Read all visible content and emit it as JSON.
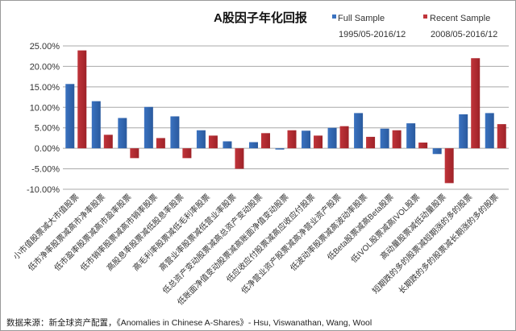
{
  "chart_data": {
    "type": "bar",
    "title": "A股因子年化回报",
    "categories": [
      "小市值股票减大市值股票",
      "低市净率股票减高市净率股票",
      "低市盈率股票减高市盈率股票",
      "低市销率股票减高市销率股票",
      "高股息率股票减低股息率股票",
      "高毛利率股票减低毛利率股票",
      "高营业率股票减低营业率股票",
      "低总资产变动股票减高总资产变动股票",
      "低账面净值变动股票减高账面净值变动股票",
      "低应收应付股票减高应收应付股票",
      "低净营业资产股票减高净营业资产股票",
      "低波动率股票减高波动率股票",
      "低Beta股票减高Beta股票",
      "低IVOL股票减高IVOL股票",
      "高动量股票减低动量股票",
      "短期跌的多的股票减短期涨的多的股票",
      "长期跌的多的股票减长期涨的多的股票"
    ],
    "series": [
      {
        "name": "Full Sample",
        "period": "1995/05-2016/12",
        "color": "#3a72c0",
        "values": [
          15.7,
          11.5,
          7.4,
          10.1,
          7.8,
          4.4,
          1.7,
          1.5,
          -0.3,
          4.3,
          5.0,
          8.6,
          4.8,
          6.1,
          -1.4,
          8.3,
          8.6
        ]
      },
      {
        "name": "Recent Sample",
        "period": "2008/05-2016/12",
        "color": "#c0343a",
        "values": [
          23.9,
          3.3,
          -2.4,
          2.5,
          -2.4,
          3.1,
          -5.0,
          3.7,
          4.4,
          3.1,
          5.4,
          2.8,
          4.4,
          1.4,
          -8.5,
          22.0,
          5.9
        ]
      }
    ],
    "ylim": [
      -10,
      25
    ],
    "yticks": [
      "25.00%",
      "20.00%",
      "15.00%",
      "10.00%",
      "5.00%",
      "0.00%",
      "-5.00%",
      "-10.00%"
    ],
    "ytick_values": [
      25,
      20,
      15,
      10,
      5,
      0,
      -5,
      -10
    ],
    "grid": true,
    "legend_placement": "top-right",
    "xlabel": "",
    "ylabel": ""
  },
  "footer": "数据来源：新全球资产配置，《Anomalies in Chinese A-Shares》- Hsu, Viswanathan, Wang, Wool"
}
